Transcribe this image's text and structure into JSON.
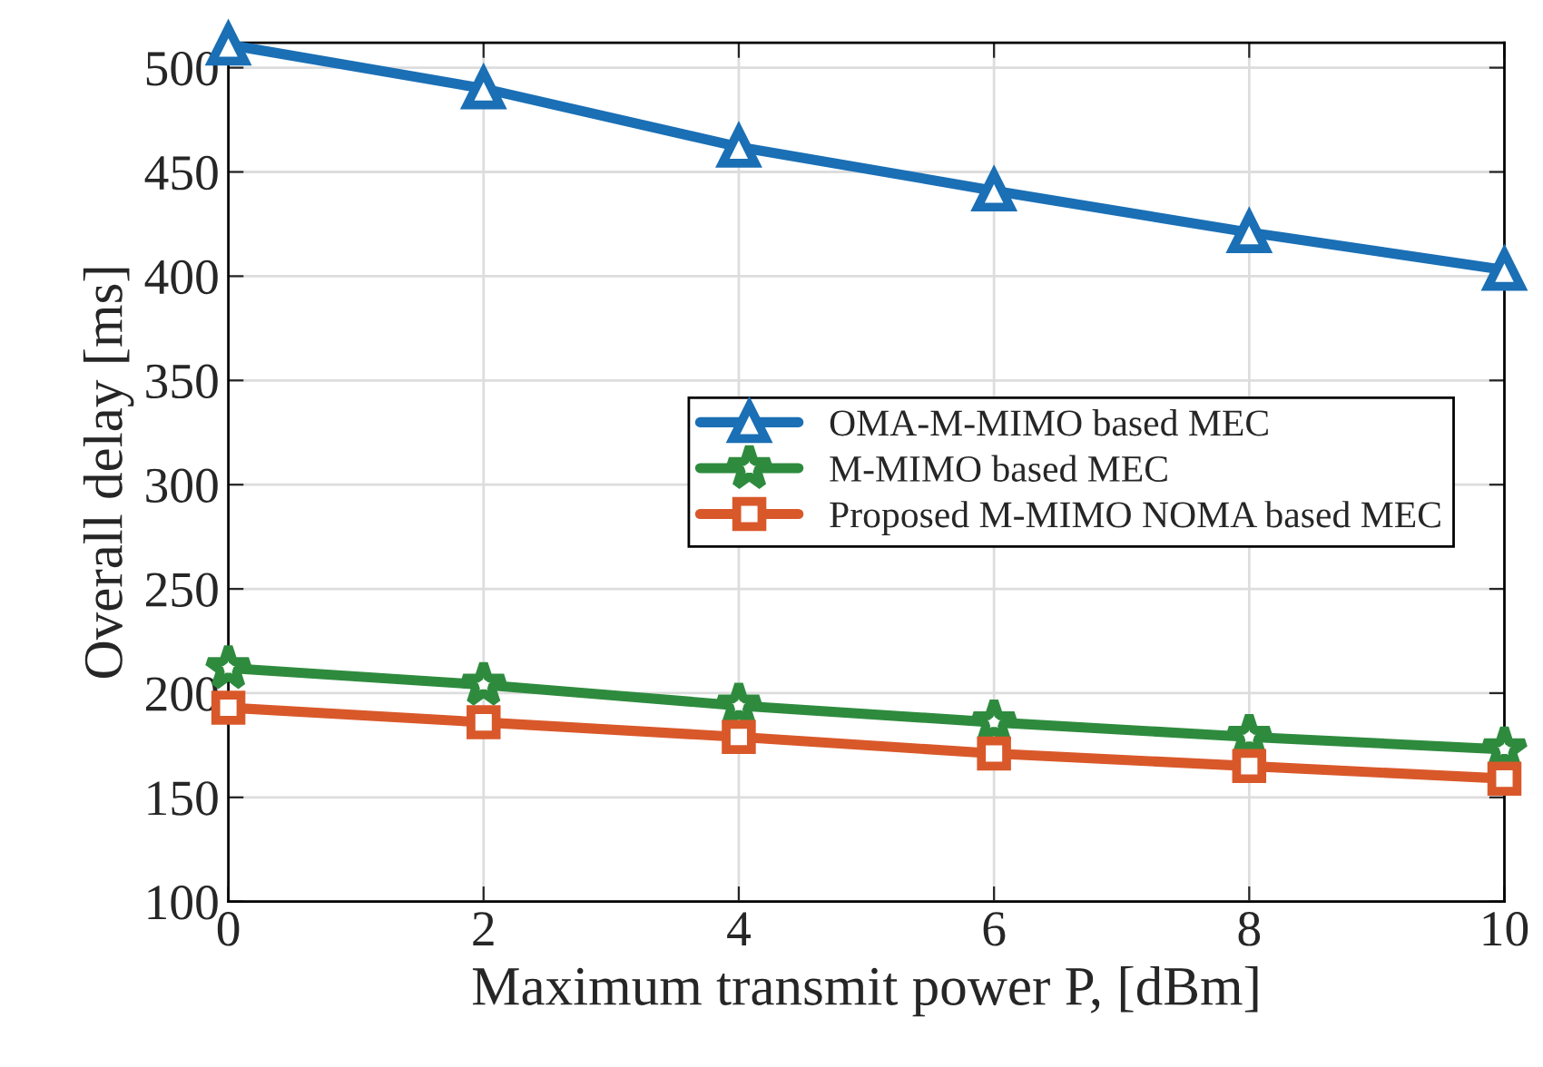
{
  "chart_data": {
    "type": "line",
    "xlabel": "Maximum transmit power P, [dBm]",
    "ylabel": "Overall delay [ms]",
    "x": [
      0,
      2,
      4,
      6,
      8,
      10
    ],
    "series": [
      {
        "name": "OMA-M-MIMO based MEC",
        "color": "#1a6fb5",
        "marker": "triangle",
        "values": [
          511,
          490,
          462,
          441,
          421,
          403
        ]
      },
      {
        "name": "M-MIMO based MEC",
        "color": "#2e8b3e",
        "marker": "star",
        "values": [
          212,
          204,
          194,
          186,
          179,
          173
        ]
      },
      {
        "name": "Proposed M-MIMO NOMA based MEC",
        "color": "#d9582a",
        "marker": "square",
        "values": [
          193,
          186,
          179,
          171,
          165,
          159
        ]
      }
    ],
    "xlim": [
      0,
      10
    ],
    "xticks": [
      0,
      2,
      4,
      6,
      8,
      10
    ],
    "ylim": [
      100,
      512
    ],
    "yticks": [
      100,
      150,
      200,
      250,
      300,
      350,
      400,
      450,
      500
    ],
    "grid": true,
    "legend": "center right",
    "line_style": "solid"
  }
}
